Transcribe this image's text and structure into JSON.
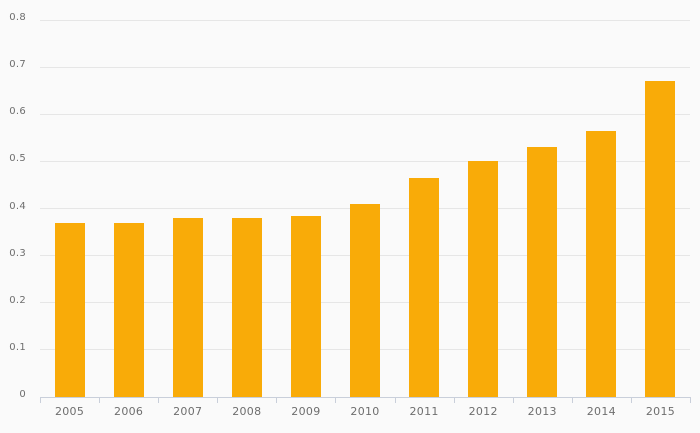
{
  "chart_data": {
    "type": "bar",
    "title": "",
    "xlabel": "",
    "ylabel": "",
    "categories": [
      "2005",
      "2006",
      "2007",
      "2008",
      "2009",
      "2010",
      "2011",
      "2012",
      "2013",
      "2014",
      "2015"
    ],
    "values": [
      0.37,
      0.37,
      0.38,
      0.38,
      0.385,
      0.41,
      0.465,
      0.5,
      0.53,
      0.565,
      0.67
    ],
    "ylim": [
      0,
      0.8
    ],
    "yticks": [
      0,
      0.1,
      0.2,
      0.3,
      0.4,
      0.5,
      0.6,
      0.7,
      0.8
    ],
    "ytick_labels": [
      "0",
      "0.1",
      "0.2",
      "0.3",
      "0.4",
      "0.5",
      "0.6",
      "0.7",
      "0.8"
    ],
    "grid": true,
    "legend": false,
    "legend_position": "none",
    "colors": {
      "background": "#fafafa",
      "bar": "#f9ab08",
      "gridline": "#e6e6e6",
      "axis_line": "#c9cfda",
      "tick_label": "#6e6e6e"
    }
  }
}
